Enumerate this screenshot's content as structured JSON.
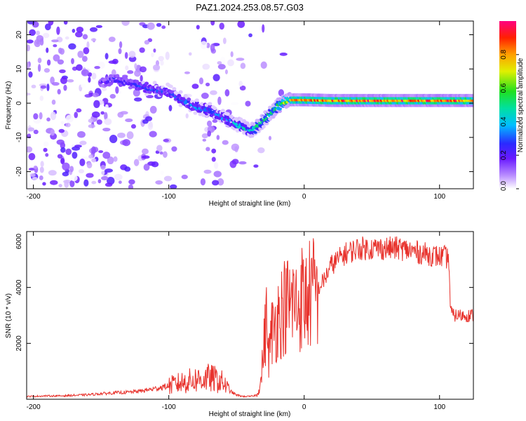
{
  "figure": {
    "title": "PAZ1.2024.253.08.57.G03"
  },
  "chart_data": [
    {
      "type": "heatmap",
      "xlabel": "Height of straight line (km)",
      "ylabel": "Frequency (Hz)",
      "xlim": [
        -205,
        125
      ],
      "ylim": [
        -25,
        24
      ],
      "xticks": [
        -200,
        -100,
        0,
        100
      ],
      "yticks": [
        -20,
        -10,
        0,
        10,
        20
      ],
      "colorbar": {
        "label": "Normalized spectral amplitude",
        "range": [
          0,
          1
        ],
        "ticks": [
          "0.0",
          "0.2",
          "0.4",
          "0.6",
          "0.8"
        ],
        "colormap": "rainbow (white-violet-blue-cyan-green-yellow-orange-red-magenta)"
      },
      "ridge": {
        "x": [
          -150,
          -140,
          -130,
          -120,
          -110,
          -100,
          -90,
          -80,
          -70,
          -60,
          -50,
          -45,
          -40,
          -35,
          -30,
          -25,
          -20,
          -15,
          -10,
          0,
          20,
          40,
          60,
          80,
          100,
          125
        ],
        "y": [
          6,
          7,
          6,
          5,
          4,
          3.5,
          1,
          -1,
          -2,
          -4,
          -6,
          -7,
          -8,
          -7,
          -5,
          -3,
          -1,
          0.5,
          1,
          1,
          0.8,
          0.8,
          0.8,
          0.8,
          0.8,
          0.8
        ],
        "amplitude": [
          0.2,
          0.25,
          0.25,
          0.3,
          0.3,
          0.3,
          0.35,
          0.35,
          0.35,
          0.35,
          0.4,
          0.45,
          0.45,
          0.5,
          0.5,
          0.55,
          0.6,
          0.7,
          0.8,
          0.85,
          0.9,
          0.9,
          0.9,
          0.9,
          0.9,
          0.9
        ]
      }
    },
    {
      "type": "line",
      "xlabel": "Height of straight line (km)",
      "ylabel": "SNR (10 * v/v)",
      "xlim": [
        -205,
        125
      ],
      "ylim": [
        0,
        6000
      ],
      "xticks": [
        -200,
        -100,
        0,
        100
      ],
      "yticks": [
        2000,
        4000,
        6000
      ],
      "color": "#e8322c",
      "series": [
        {
          "x": [
            -205,
            -190,
            -180,
            -170,
            -160,
            -150,
            -140,
            -130,
            -120,
            -110,
            -100,
            -90,
            -85,
            -80,
            -75,
            -70,
            -65,
            -60,
            -55,
            -50,
            -45,
            -40,
            -35,
            -32,
            -30,
            -28,
            -26,
            -24,
            -22,
            -20,
            -18,
            -15,
            -12,
            -10,
            -8,
            -5,
            -2,
            0,
            5,
            10,
            15,
            20,
            25,
            30,
            35,
            40,
            50,
            60,
            70,
            80,
            90,
            100,
            104,
            107,
            108,
            110,
            115,
            120,
            125
          ],
          "y": [
            100,
            120,
            120,
            140,
            160,
            200,
            230,
            250,
            300,
            380,
            480,
            600,
            650,
            700,
            720,
            760,
            700,
            600,
            300,
            150,
            100,
            100,
            150,
            600,
            1800,
            2800,
            1500,
            2400,
            2600,
            2900,
            3100,
            3300,
            3400,
            3300,
            3600,
            3200,
            3700,
            3500,
            3800,
            3900,
            4300,
            4800,
            5000,
            5200,
            5300,
            5400,
            5400,
            5400,
            5400,
            5300,
            5200,
            5100,
            5100,
            5000,
            3200,
            3000,
            3000,
            3000,
            3000
          ]
        }
      ]
    }
  ]
}
